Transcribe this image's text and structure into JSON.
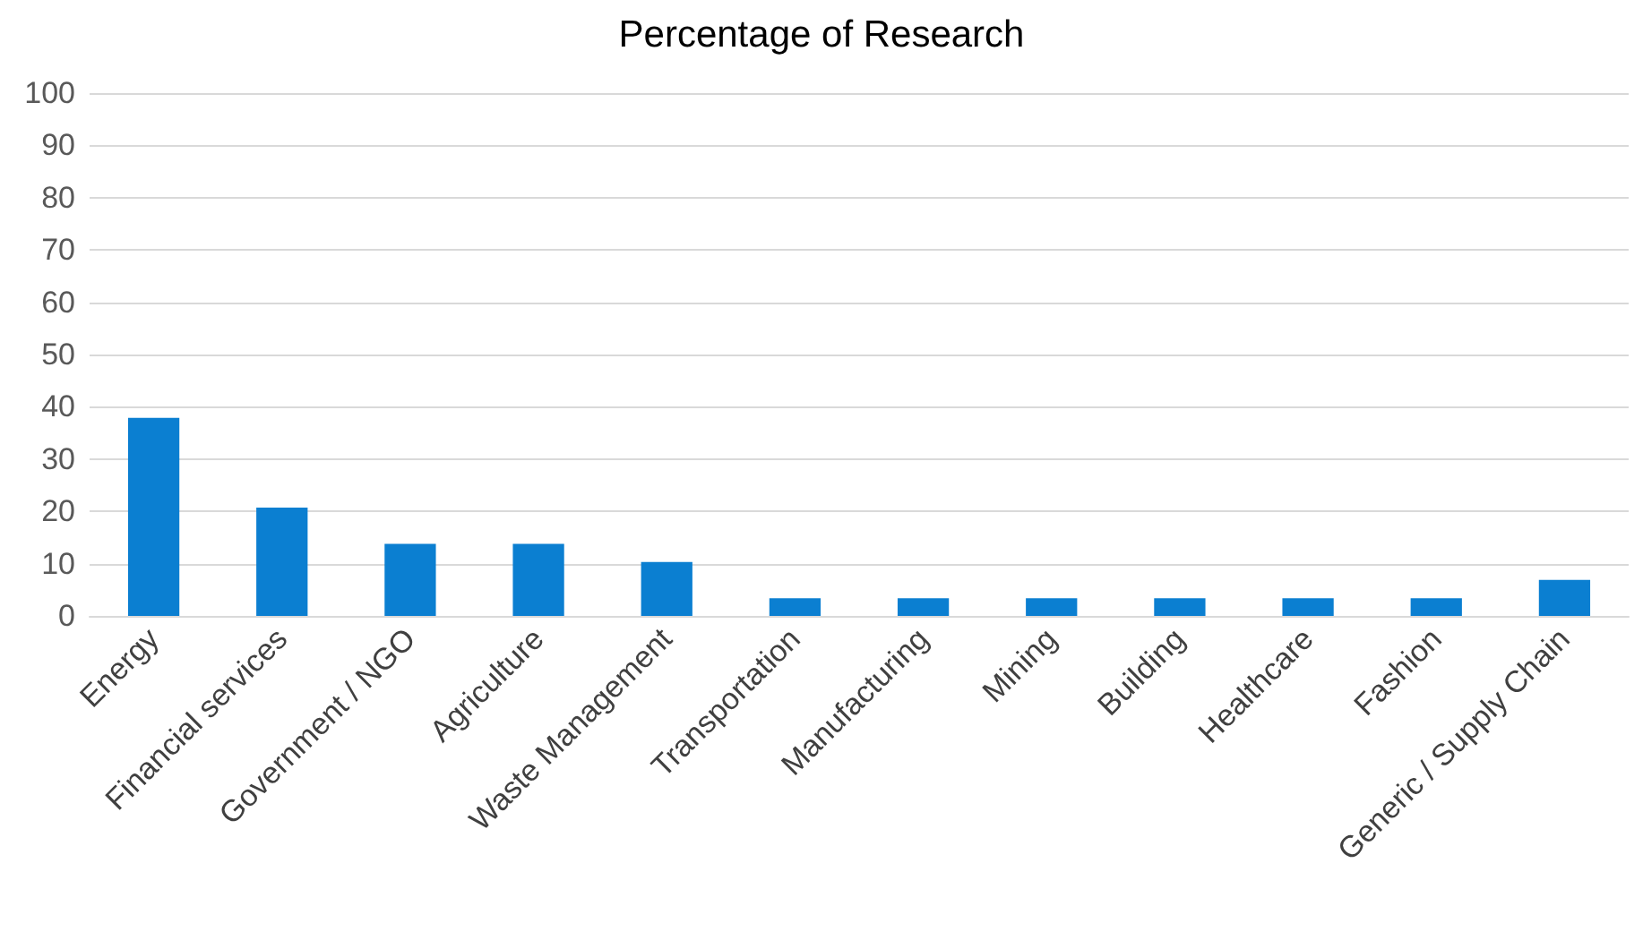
{
  "chart_data": {
    "type": "bar",
    "title": "Percentage of Research",
    "categories": [
      "Energy",
      "Financial services",
      "Government / NGO",
      "Agriculture",
      "Waste Management",
      "Transportation",
      "Manufacturing",
      "Mining",
      "Building",
      "Healthcare",
      "Fashion",
      "Generic / Supply Chain"
    ],
    "values": [
      37.9,
      20.7,
      13.8,
      13.8,
      10.3,
      3.4,
      3.4,
      3.4,
      3.4,
      3.4,
      3.4,
      6.9
    ],
    "color": "#0b7fd1",
    "ylim": [
      0,
      100
    ],
    "yticks": [
      0,
      10,
      20,
      30,
      40,
      50,
      60,
      70,
      80,
      90,
      100
    ],
    "grid": "y"
  }
}
